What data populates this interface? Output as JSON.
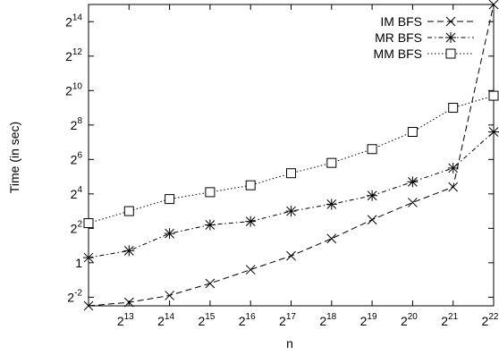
{
  "chart_data": {
    "type": "line",
    "title": "",
    "xlabel": "n",
    "ylabel": "Time (in sec)",
    "x_scale": "log2",
    "y_scale": "log2",
    "x_exponents": [
      12,
      13,
      14,
      15,
      16,
      17,
      18,
      19,
      20,
      21,
      22
    ],
    "x_tick_labels": [
      {
        "base": "2",
        "exp": "13"
      },
      {
        "base": "2",
        "exp": "14"
      },
      {
        "base": "2",
        "exp": "15"
      },
      {
        "base": "2",
        "exp": "16"
      },
      {
        "base": "2",
        "exp": "17"
      },
      {
        "base": "2",
        "exp": "18"
      },
      {
        "base": "2",
        "exp": "19"
      },
      {
        "base": "2",
        "exp": "20"
      },
      {
        "base": "2",
        "exp": "21"
      },
      {
        "base": "2",
        "exp": "22"
      }
    ],
    "y_tick_labels": [
      {
        "base": "2",
        "exp": "-2",
        "value_log2": -2
      },
      {
        "base": "1",
        "exp": "",
        "value_log2": 0
      },
      {
        "base": "2",
        "exp": "2",
        "value_log2": 2
      },
      {
        "base": "2",
        "exp": "4",
        "value_log2": 4
      },
      {
        "base": "2",
        "exp": "6",
        "value_log2": 6
      },
      {
        "base": "2",
        "exp": "8",
        "value_log2": 8
      },
      {
        "base": "2",
        "exp": "10",
        "value_log2": 10
      },
      {
        "base": "2",
        "exp": "12",
        "value_log2": 12
      },
      {
        "base": "2",
        "exp": "14",
        "value_log2": 14
      }
    ],
    "xlim_log2": [
      12,
      22
    ],
    "ylim_log2": [
      -2.5,
      15
    ],
    "grid": false,
    "legend_position": "top-right",
    "series": [
      {
        "name": "IM BFS",
        "marker": "x",
        "line_style": "dashed",
        "x_log2": [
          12,
          13,
          14,
          15,
          16,
          17,
          18,
          19,
          20,
          21,
          22
        ],
        "y_log2": [
          -2.5,
          -2.3,
          -1.9,
          -1.2,
          -0.4,
          0.4,
          1.4,
          2.5,
          3.5,
          4.4,
          15
        ]
      },
      {
        "name": "MR BFS",
        "marker": "asterisk",
        "line_style": "dash-dot",
        "x_log2": [
          12,
          13,
          14,
          15,
          16,
          17,
          18,
          19,
          20,
          21,
          22
        ],
        "y_log2": [
          0.3,
          0.7,
          1.7,
          2.2,
          2.4,
          3.0,
          3.4,
          3.9,
          4.7,
          5.5,
          7.6
        ]
      },
      {
        "name": "MM BFS",
        "marker": "square",
        "line_style": "dotted",
        "x_log2": [
          12,
          13,
          14,
          15,
          16,
          17,
          18,
          19,
          20,
          21,
          22
        ],
        "y_log2": [
          2.3,
          3.0,
          3.7,
          4.1,
          4.5,
          5.2,
          5.8,
          6.6,
          7.6,
          9.0,
          9.7
        ]
      }
    ]
  }
}
